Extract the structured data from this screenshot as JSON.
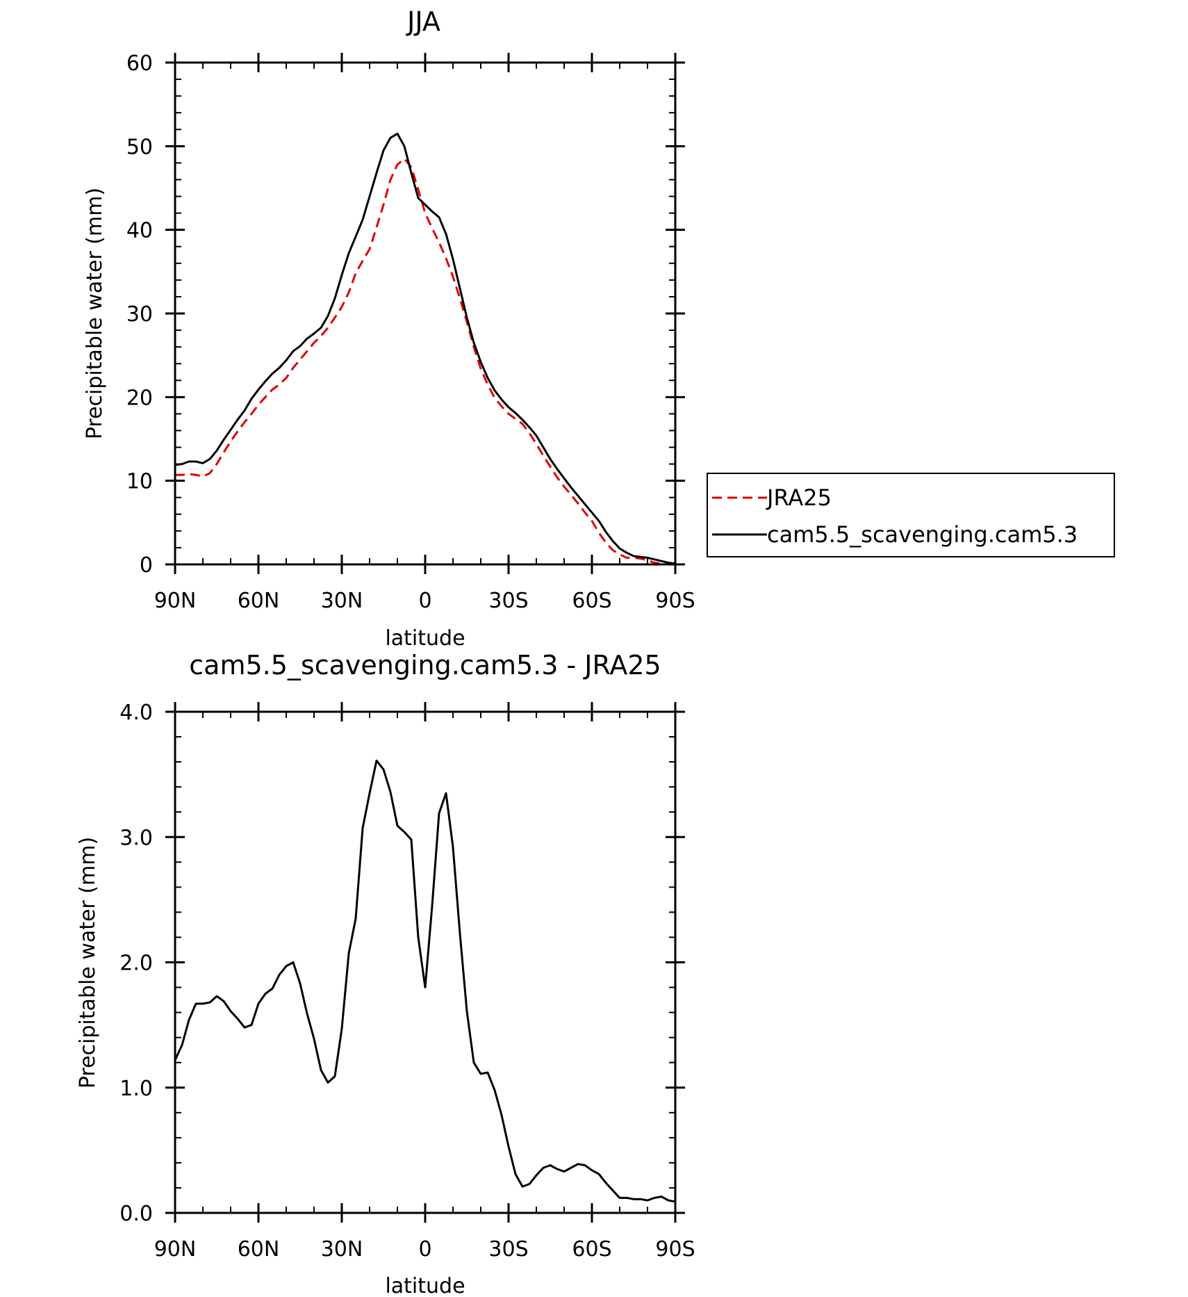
{
  "chart_data": [
    {
      "type": "line",
      "title": "JJA",
      "xlabel": "latitude",
      "ylabel": "Precipitable water (mm)",
      "xlim": [
        90,
        -90
      ],
      "ylim": [
        0,
        60
      ],
      "xticks": [
        90,
        60,
        30,
        0,
        -30,
        -60,
        -90
      ],
      "xtick_labels": [
        "90N",
        "60N",
        "30N",
        "0",
        "30S",
        "60S",
        "90S"
      ],
      "yticks": [
        0,
        10,
        20,
        30,
        40,
        50,
        60
      ],
      "ytick_labels": [
        "0",
        "10",
        "20",
        "30",
        "40",
        "50",
        "60"
      ],
      "legend_position": "right",
      "series": [
        {
          "name": "JRA25",
          "color": "#e00000",
          "dash": "dashed",
          "x": [
            90,
            87.5,
            85,
            82.5,
            80,
            77.5,
            75,
            72.5,
            70,
            67.5,
            65,
            62.5,
            60,
            57.5,
            55,
            52.5,
            50,
            47.5,
            45,
            42.5,
            40,
            37.5,
            35,
            32.5,
            30,
            27.5,
            25,
            22.5,
            20,
            17.5,
            15,
            12.5,
            10,
            7.5,
            5,
            2.5,
            0,
            -2.5,
            -5,
            -7.5,
            -10,
            -12.5,
            -15,
            -17.5,
            -20,
            -22.5,
            -25,
            -27.5,
            -30,
            -32.5,
            -35,
            -37.5,
            -40,
            -42.5,
            -45,
            -47.5,
            -50,
            -52.5,
            -55,
            -57.5,
            -60,
            -62.5,
            -65,
            -67.5,
            -70,
            -72.5,
            -75,
            -77.5,
            -80,
            -82.5,
            -85,
            -87.5,
            -90
          ],
          "y": [
            10.7,
            10.7,
            10.8,
            10.7,
            10.5,
            10.9,
            12.0,
            13.4,
            14.7,
            15.9,
            17.0,
            18.0,
            19.1,
            20.0,
            20.9,
            21.5,
            22.3,
            23.5,
            24.5,
            25.5,
            26.5,
            27.3,
            28.3,
            29.5,
            30.8,
            32.5,
            34.8,
            36.3,
            37.7,
            40.3,
            43.0,
            46.0,
            47.8,
            48.5,
            47.5,
            44.8,
            42.0,
            40.2,
            38.5,
            36.6,
            34.4,
            31.8,
            29.0,
            26.0,
            23.4,
            21.5,
            19.9,
            18.9,
            18.0,
            17.4,
            16.8,
            15.7,
            14.4,
            13.0,
            11.7,
            10.4,
            9.3,
            8.3,
            7.3,
            6.2,
            5.2,
            3.8,
            2.6,
            1.7,
            1.2,
            0.8,
            0.8,
            0.7,
            0.5,
            0.2,
            0.1,
            0.05,
            0.05
          ]
        },
        {
          "name": "cam5.5_scavenging.cam5.3",
          "color": "#000000",
          "dash": "solid",
          "x": [
            90,
            87.5,
            85,
            82.5,
            80,
            77.5,
            75,
            72.5,
            70,
            67.5,
            65,
            62.5,
            60,
            57.5,
            55,
            52.5,
            50,
            47.5,
            45,
            42.5,
            40,
            37.5,
            35,
            32.5,
            30,
            27.5,
            25,
            22.5,
            20,
            17.5,
            15,
            12.5,
            10,
            7.5,
            5,
            2.5,
            0,
            -2.5,
            -5,
            -7.5,
            -10,
            -12.5,
            -15,
            -17.5,
            -20,
            -22.5,
            -25,
            -27.5,
            -30,
            -32.5,
            -35,
            -37.5,
            -40,
            -42.5,
            -45,
            -47.5,
            -50,
            -52.5,
            -55,
            -57.5,
            -60,
            -62.5,
            -65,
            -67.5,
            -70,
            -72.5,
            -75,
            -77.5,
            -80,
            -82.5,
            -85,
            -87.5,
            -90
          ],
          "y": [
            11.9,
            12.0,
            12.3,
            12.3,
            12.1,
            12.6,
            13.6,
            14.9,
            16.1,
            17.3,
            18.4,
            19.8,
            20.9,
            21.9,
            22.8,
            23.5,
            24.4,
            25.5,
            26.1,
            27.0,
            27.6,
            28.3,
            29.7,
            31.8,
            34.6,
            37.2,
            39.2,
            41.2,
            44.0,
            46.8,
            49.5,
            51.0,
            51.5,
            50.0,
            46.8,
            43.8,
            43.0,
            42.2,
            41.5,
            39.5,
            36.5,
            33.0,
            29.5,
            26.5,
            24.2,
            22.3,
            20.8,
            19.7,
            18.8,
            18.1,
            17.3,
            16.4,
            15.4,
            14.0,
            12.6,
            11.4,
            10.3,
            9.2,
            8.2,
            7.2,
            6.2,
            5.2,
            3.9,
            2.8,
            1.9,
            1.4,
            1.0,
            0.9,
            0.8,
            0.6,
            0.4,
            0.2,
            0.1
          ]
        }
      ]
    },
    {
      "type": "line",
      "title": "cam5.5_scavenging.cam5.3 - JRA25",
      "xlabel": "latitude",
      "ylabel": "Precipitable water (mm)",
      "xlim": [
        90,
        -90
      ],
      "ylim": [
        0,
        4
      ],
      "xticks": [
        90,
        60,
        30,
        0,
        -30,
        -60,
        -90
      ],
      "xtick_labels": [
        "90N",
        "60N",
        "30N",
        "0",
        "30S",
        "60S",
        "90S"
      ],
      "yticks": [
        0,
        1,
        2,
        3,
        4
      ],
      "ytick_labels": [
        "0.0",
        "1.0",
        "2.0",
        "3.0",
        "4.0"
      ],
      "series": [
        {
          "color": "#000000",
          "dash": "solid",
          "x": [
            90,
            87.5,
            85,
            82.5,
            80,
            77.5,
            75,
            72.5,
            70,
            67.5,
            65,
            62.5,
            60,
            57.5,
            55,
            52.5,
            50,
            47.5,
            45,
            42.5,
            40,
            37.5,
            35,
            32.5,
            30,
            27.5,
            25,
            22.5,
            20,
            17.5,
            15,
            12.5,
            10,
            7.5,
            5,
            2.5,
            0,
            -2.5,
            -5,
            -7.5,
            -10,
            -12.5,
            -15,
            -17.5,
            -20,
            -22.5,
            -25,
            -27.5,
            -30,
            -32.5,
            -35,
            -37.5,
            -40,
            -42.5,
            -45,
            -47.5,
            -50,
            -52.5,
            -55,
            -57.5,
            -60,
            -62.5,
            -65,
            -67.5,
            -70,
            -72.5,
            -75,
            -77.5,
            -80,
            -82.5,
            -85,
            -87.5,
            -90
          ],
          "y": [
            1.22,
            1.34,
            1.54,
            1.67,
            1.67,
            1.68,
            1.73,
            1.69,
            1.61,
            1.55,
            1.48,
            1.5,
            1.67,
            1.75,
            1.79,
            1.9,
            1.97,
            2.0,
            1.83,
            1.59,
            1.39,
            1.14,
            1.04,
            1.09,
            1.47,
            2.07,
            2.35,
            3.07,
            3.35,
            3.61,
            3.54,
            3.36,
            3.09,
            3.04,
            2.98,
            2.2,
            1.8,
            2.45,
            3.19,
            3.35,
            2.92,
            2.23,
            1.61,
            1.2,
            1.11,
            1.12,
            0.98,
            0.78,
            0.53,
            0.31,
            0.21,
            0.23,
            0.3,
            0.36,
            0.38,
            0.35,
            0.33,
            0.36,
            0.39,
            0.38,
            0.34,
            0.31,
            0.24,
            0.18,
            0.12,
            0.12,
            0.11,
            0.11,
            0.1,
            0.12,
            0.13,
            0.1,
            0.09
          ]
        }
      ]
    }
  ]
}
